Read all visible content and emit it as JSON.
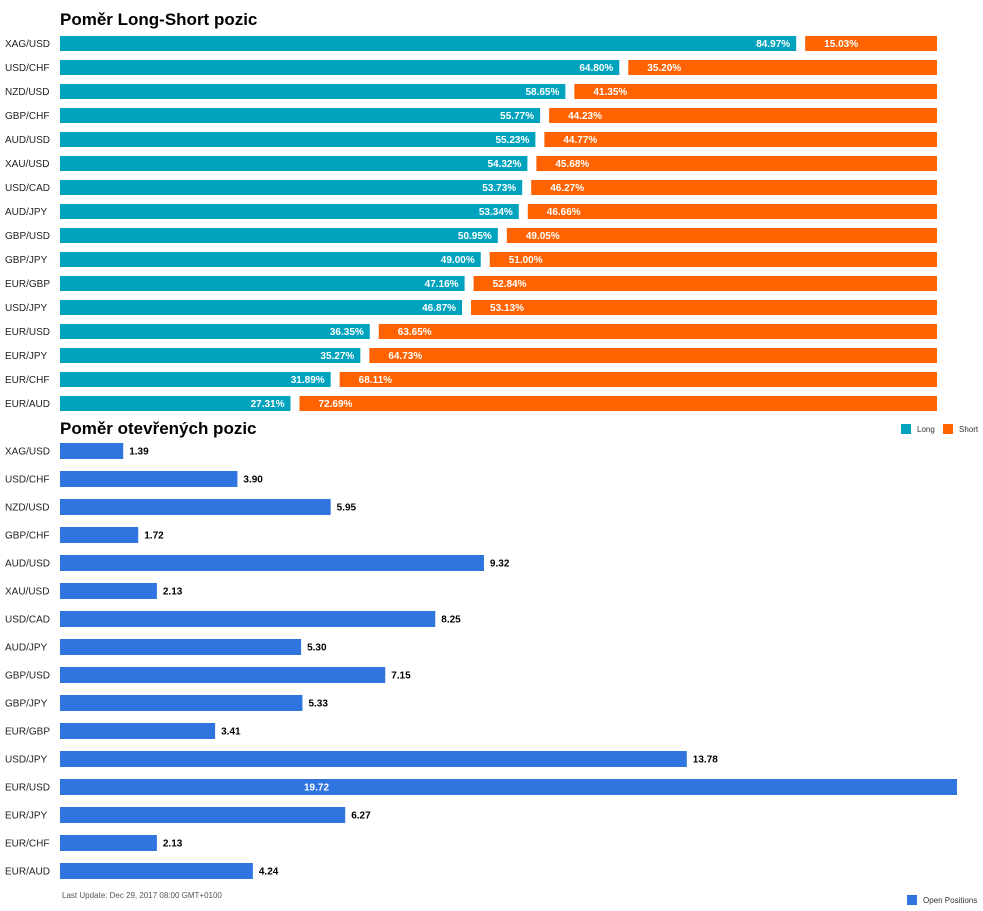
{
  "chart_data": [
    {
      "type": "bar",
      "stacked": true,
      "orientation": "horizontal",
      "title": "Poměr Long-Short pozic",
      "categories": [
        "XAG/USD",
        "USD/CHF",
        "NZD/USD",
        "GBP/CHF",
        "AUD/USD",
        "XAU/USD",
        "USD/CAD",
        "AUD/JPY",
        "GBP/USD",
        "GBP/JPY",
        "EUR/GBP",
        "USD/JPY",
        "EUR/USD",
        "EUR/JPY",
        "EUR/CHF",
        "EUR/AUD"
      ],
      "series": [
        {
          "name": "Long",
          "color": "#00A3BE",
          "values": [
            84.97,
            64.8,
            58.65,
            55.77,
            55.23,
            54.32,
            53.73,
            53.34,
            50.95,
            49.0,
            47.16,
            46.87,
            36.35,
            35.27,
            31.89,
            27.31
          ],
          "labels": [
            "84.97%",
            "64.80%",
            "58.65%",
            "55.77%",
            "55.23%",
            "54.32%",
            "53.73%",
            "53.34%",
            "50.95%",
            "49.00%",
            "47.16%",
            "46.87%",
            "36.35%",
            "35.27%",
            "31.89%",
            "27.31%"
          ]
        },
        {
          "name": "Short",
          "color": "#FF6200",
          "values": [
            15.03,
            35.2,
            41.35,
            44.23,
            44.77,
            45.68,
            46.27,
            46.66,
            49.05,
            51.0,
            52.84,
            53.13,
            63.65,
            64.73,
            68.11,
            72.69
          ],
          "labels": [
            "15.03%",
            "35.20%",
            "41.35%",
            "44.23%",
            "44.77%",
            "45.68%",
            "46.27%",
            "46.66%",
            "49.05%",
            "51.00%",
            "52.84%",
            "53.13%",
            "63.65%",
            "64.73%",
            "68.11%",
            "72.69%"
          ]
        }
      ],
      "xlim": [
        0,
        100
      ],
      "legend": "right"
    },
    {
      "type": "bar",
      "orientation": "horizontal",
      "title": "Poměr otevřených pozic",
      "categories": [
        "XAG/USD",
        "USD/CHF",
        "NZD/USD",
        "GBP/CHF",
        "AUD/USD",
        "XAU/USD",
        "USD/CAD",
        "AUD/JPY",
        "GBP/USD",
        "GBP/JPY",
        "EUR/GBP",
        "USD/JPY",
        "EUR/USD",
        "EUR/JPY",
        "EUR/CHF",
        "EUR/AUD"
      ],
      "series": [
        {
          "name": "Open Positions",
          "color": "#2F74DF",
          "values": [
            1.39,
            3.9,
            5.95,
            1.72,
            9.32,
            2.13,
            8.25,
            5.3,
            7.15,
            5.33,
            3.41,
            13.78,
            19.72,
            6.27,
            2.13,
            4.24
          ],
          "labels": [
            "1.39",
            "3.90",
            "5.95",
            "1.72",
            "9.32",
            "2.13",
            "8.25",
            "5.30",
            "7.15",
            "5.33",
            "3.41",
            "13.78",
            "19.72",
            "6.27",
            "2.13",
            "4.24"
          ]
        }
      ],
      "xlim": [
        0,
        19.72
      ],
      "legend": "bottom-right"
    }
  ],
  "footer": {
    "last_update": "Last Update: Dec 29, 2017 08:00 GMT+0100"
  }
}
